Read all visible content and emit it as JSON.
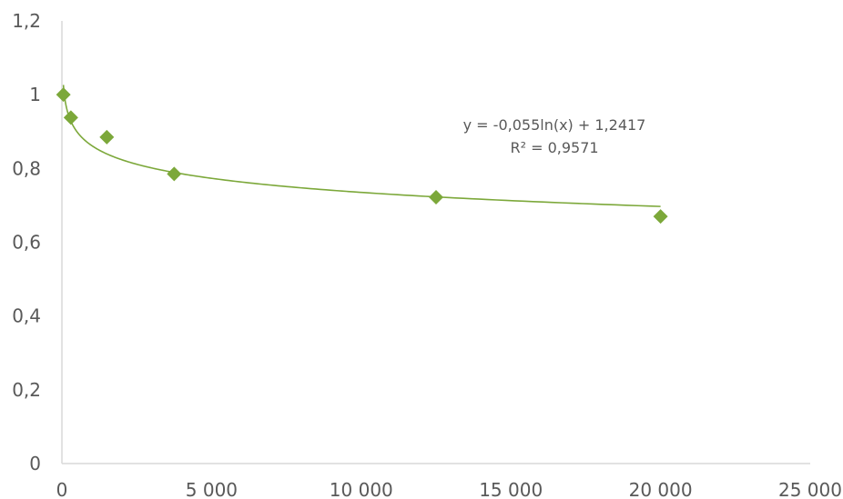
{
  "chart_data": {
    "type": "scatter",
    "title": "",
    "xlabel": "",
    "ylabel": "",
    "xlim": [
      0,
      25000
    ],
    "ylim": [
      0,
      1.2
    ],
    "grid": false,
    "x_ticks": [
      0,
      5000,
      10000,
      15000,
      20000,
      25000
    ],
    "x_tick_labels": [
      "0",
      "5 000",
      "10 000",
      "15 000",
      "20 000",
      "25 000"
    ],
    "y_ticks": [
      0,
      0.2,
      0.4,
      0.6,
      0.8,
      1.0,
      1.2
    ],
    "y_tick_labels": [
      "0",
      "0,2",
      "0,4",
      "0,6",
      "0,8",
      "1",
      "1,2"
    ],
    "series": [
      {
        "marker": "diamond",
        "color": "#7ca83a",
        "x": [
          50,
          300,
          1500,
          3750,
          12500,
          20000
        ],
        "y": [
          1.0,
          0.938,
          0.885,
          0.785,
          0.722,
          0.67
        ]
      }
    ],
    "trendline": {
      "type": "logarithmic",
      "a": -0.055,
      "b": 1.2417,
      "x_range": [
        50,
        20000
      ],
      "color": "#7ca83a",
      "equation_label": "y = -0,055ln(x) + 1,2417",
      "r2_label": "R² = 0,9571"
    },
    "axis_color": "#d9d9d9"
  }
}
